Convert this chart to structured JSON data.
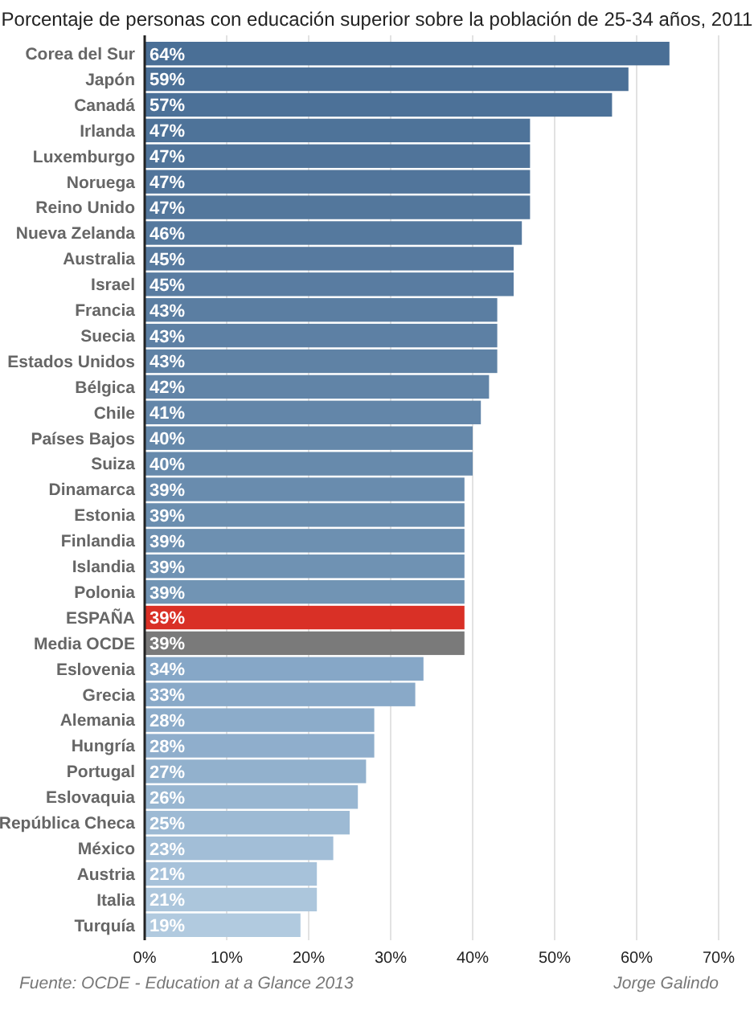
{
  "chart_data": {
    "type": "bar",
    "orientation": "horizontal",
    "title": "Porcentaje de personas con educación superior sobre la población de 25-34 años, 2011",
    "categories": [
      "Corea del Sur",
      "Japón",
      "Canadá",
      "Irlanda",
      "Luxemburgo",
      "Noruega",
      "Reino Unido",
      "Nueva Zelanda",
      "Australia",
      "Israel",
      "Francia",
      "Suecia",
      "Estados Unidos",
      "Bélgica",
      "Chile",
      "Países Bajos",
      "Suiza",
      "Dinamarca",
      "Estonia",
      "Finlandia",
      "Islandia",
      "Polonia",
      "ESPAÑA",
      "Media OCDE",
      "Eslovenia",
      "Grecia",
      "Alemania",
      "Hungría",
      "Portugal",
      "Eslovaquia",
      "República Checa",
      "México",
      "Austria",
      "Italia",
      "Turquía"
    ],
    "values": [
      64,
      59,
      57,
      47,
      47,
      47,
      47,
      46,
      45,
      45,
      43,
      43,
      43,
      42,
      41,
      40,
      40,
      39,
      39,
      39,
      39,
      39,
      39,
      39,
      34,
      33,
      28,
      28,
      27,
      26,
      25,
      23,
      21,
      21,
      19
    ],
    "value_labels": [
      "64%",
      "59%",
      "57%",
      "47%",
      "47%",
      "47%",
      "47%",
      "46%",
      "45%",
      "45%",
      "43%",
      "43%",
      "43%",
      "42%",
      "41%",
      "40%",
      "40%",
      "39%",
      "39%",
      "39%",
      "39%",
      "39%",
      "39%",
      "39%",
      "34%",
      "33%",
      "28%",
      "28%",
      "27%",
      "26%",
      "25%",
      "23%",
      "21%",
      "21%",
      "19%"
    ],
    "colors": [
      "#4a6f96",
      "#4b7097",
      "#4c7198",
      "#4e7399",
      "#50749a",
      "#51759b",
      "#53779c",
      "#55799e",
      "#577a9f",
      "#597ca1",
      "#5b7ea2",
      "#5d80a4",
      "#5f82a5",
      "#6184a7",
      "#6386a9",
      "#6588aa",
      "#678aac",
      "#698cae",
      "#6b8eaf",
      "#6d90b1",
      "#6f92b3",
      "#7194b4",
      "#d93026",
      "#7a7a7a",
      "#86a7c7",
      "#89a9c8",
      "#8cacca",
      "#8faecc",
      "#92b1cd",
      "#98b6d1",
      "#9dbad4",
      "#a2bed7",
      "#a7c2da",
      "#acc6dc",
      "#b1cadf"
    ],
    "xlim": [
      0,
      70
    ],
    "xticks": [
      {
        "value": 0,
        "label": "0%"
      },
      {
        "value": 10,
        "label": "10%"
      },
      {
        "value": 20,
        "label": "20%"
      },
      {
        "value": 30,
        "label": "30%"
      },
      {
        "value": 40,
        "label": "40%"
      },
      {
        "value": 50,
        "label": "50%"
      },
      {
        "value": 60,
        "label": "60%"
      },
      {
        "value": 70,
        "label": "70%"
      }
    ],
    "grid": "x",
    "annotations": [
      "Fuente: OCDE - Education at a Glance 2013",
      "Jorge Galindo"
    ]
  }
}
